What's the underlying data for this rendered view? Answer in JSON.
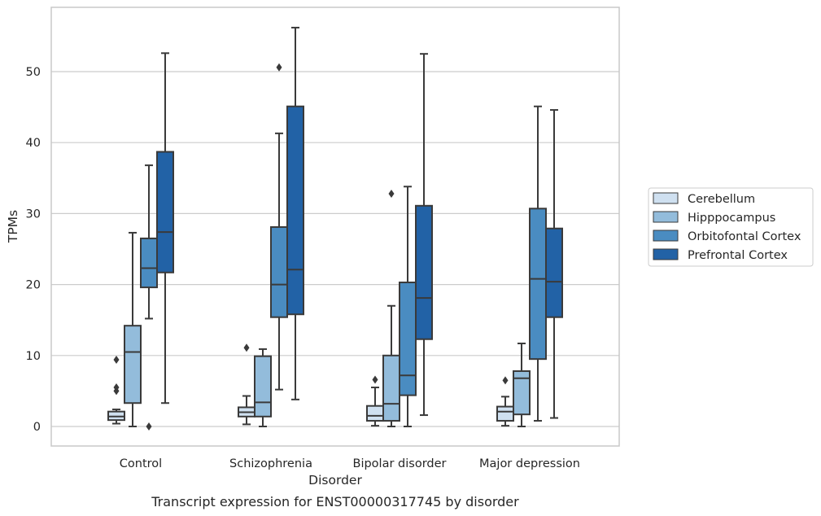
{
  "caption": "Transcript expression for ENST00000317745 by disorder",
  "colors": {
    "Cerebellum": "#cfe0f0",
    "Hipppocampus": "#93bcdb",
    "Orbitofontal Cortex": "#4a8cc1",
    "Prefrontal Cortex": "#2262a6",
    "line": "#3a3a3a",
    "grid": "#cccccc",
    "frame": "#c8c8c8"
  },
  "chart_data": {
    "type": "box",
    "xlabel": "Disorder",
    "ylabel": "TPMs",
    "ylim": [
      -2.7,
      59.3
    ],
    "yticks": [
      0,
      10,
      20,
      30,
      40,
      50
    ],
    "grid": "horizontal",
    "legend_position": "right",
    "categories": [
      "Control",
      "Schizophrenia",
      "Bipolar disorder",
      "Major depression"
    ],
    "series": [
      {
        "name": "Cerebellum",
        "boxes": [
          {
            "whislo": 0.4,
            "q1": 0.9,
            "med": 1.4,
            "q3": 2.1,
            "whishi": 2.4,
            "fliers": [
              5.0,
              5.5,
              9.4
            ]
          },
          {
            "whislo": 0.3,
            "q1": 1.4,
            "med": 2.0,
            "q3": 2.7,
            "whishi": 4.3,
            "fliers": [
              11.1
            ]
          },
          {
            "whislo": 0.1,
            "q1": 0.8,
            "med": 1.5,
            "q3": 2.9,
            "whishi": 5.5,
            "fliers": [
              6.6
            ]
          },
          {
            "whislo": 0.1,
            "q1": 0.8,
            "med": 2.1,
            "q3": 2.8,
            "whishi": 4.2,
            "fliers": [
              6.5
            ]
          }
        ]
      },
      {
        "name": "Hipppocampus",
        "boxes": [
          {
            "whislo": 0.0,
            "q1": 3.3,
            "med": 10.5,
            "q3": 14.2,
            "whishi": 27.3,
            "fliers": []
          },
          {
            "whislo": 0.0,
            "q1": 1.4,
            "med": 3.4,
            "q3": 9.9,
            "whishi": 10.9,
            "fliers": []
          },
          {
            "whislo": 0.0,
            "q1": 0.8,
            "med": 3.2,
            "q3": 10.0,
            "whishi": 17.0,
            "fliers": [
              32.8
            ]
          },
          {
            "whislo": 0.0,
            "q1": 1.7,
            "med": 6.8,
            "q3": 7.8,
            "whishi": 11.7,
            "fliers": []
          }
        ]
      },
      {
        "name": "Orbitofontal Cortex",
        "boxes": [
          {
            "whislo": 15.2,
            "q1": 19.6,
            "med": 22.3,
            "q3": 26.5,
            "whishi": 36.8,
            "fliers": [
              0.0
            ]
          },
          {
            "whislo": 5.2,
            "q1": 15.4,
            "med": 20.0,
            "q3": 28.1,
            "whishi": 41.3,
            "fliers": [
              50.6
            ]
          },
          {
            "whislo": 0.0,
            "q1": 4.4,
            "med": 7.2,
            "q3": 20.3,
            "whishi": 33.8,
            "fliers": []
          },
          {
            "whislo": 0.8,
            "q1": 9.5,
            "med": 20.8,
            "q3": 30.7,
            "whishi": 45.1,
            "fliers": []
          }
        ]
      },
      {
        "name": "Prefrontal Cortex",
        "boxes": [
          {
            "whislo": 3.3,
            "q1": 21.7,
            "med": 27.4,
            "q3": 38.7,
            "whishi": 52.6,
            "fliers": []
          },
          {
            "whislo": 3.8,
            "q1": 15.8,
            "med": 22.1,
            "q3": 45.1,
            "whishi": 56.2,
            "fliers": []
          },
          {
            "whislo": 1.6,
            "q1": 12.3,
            "med": 18.1,
            "q3": 31.1,
            "whishi": 52.5,
            "fliers": []
          },
          {
            "whislo": 1.2,
            "q1": 15.4,
            "med": 20.4,
            "q3": 27.9,
            "whishi": 44.6,
            "fliers": []
          }
        ]
      }
    ]
  }
}
